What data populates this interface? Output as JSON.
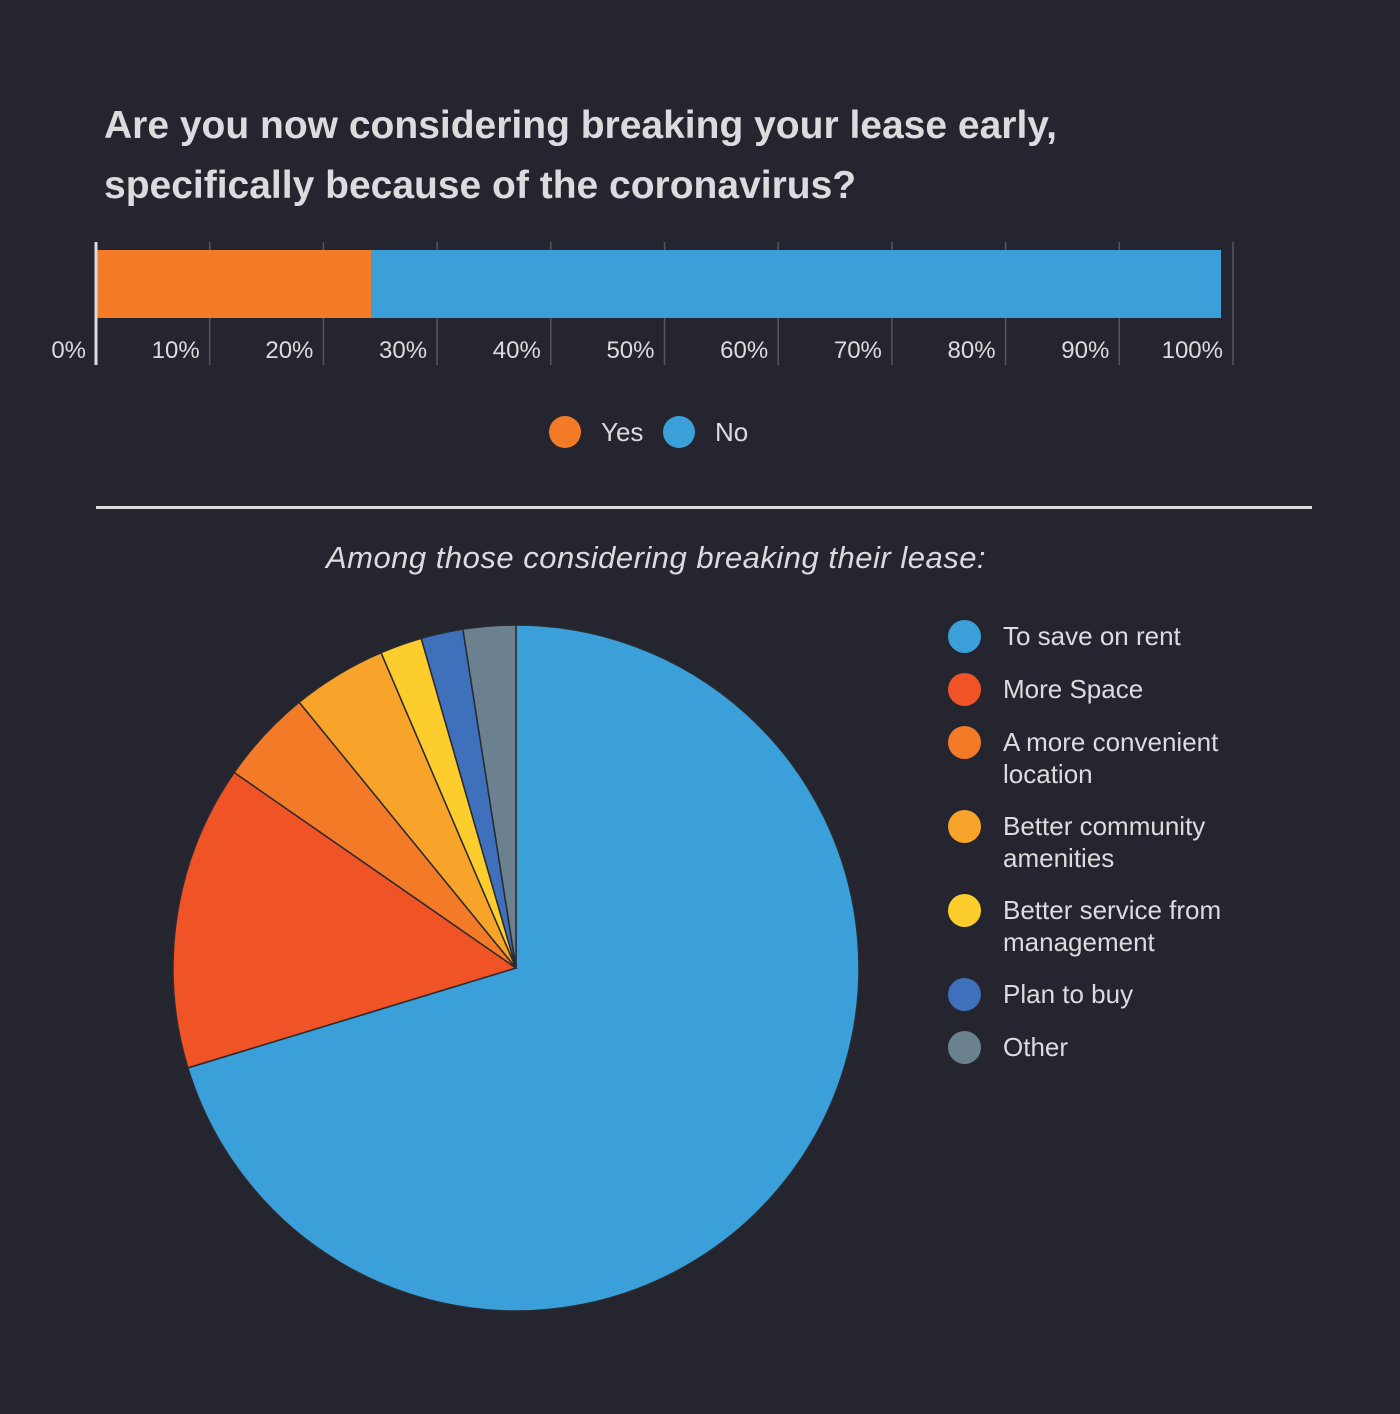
{
  "chart_data": [
    {
      "type": "bar",
      "orientation": "horizontal-stacked",
      "title": "Are you now considering breaking your lease early, specifically because of the coronavirus?",
      "categories": [
        ""
      ],
      "series": [
        {
          "name": "Yes",
          "values": [
            24.5
          ],
          "color": "#f37b27"
        },
        {
          "name": "No",
          "values": [
            75.5
          ],
          "color": "#3ba0d9"
        }
      ],
      "xlim": [
        0,
        100
      ],
      "xticks": [
        "0%",
        "10%",
        "20%",
        "30%",
        "40%",
        "50%",
        "60%",
        "70%",
        "80%",
        "90%",
        "100%"
      ],
      "grid": true,
      "legend": "bottom"
    },
    {
      "type": "pie",
      "title": "Among those considering breaking their lease:",
      "slices": [
        {
          "label": "To save on rent",
          "value": 71,
          "color": "#3ba0d9"
        },
        {
          "label": "More Space",
          "value": 14.5,
          "color": "#ef5326"
        },
        {
          "label": "A more convenient location",
          "value": 4.5,
          "color": "#f37b27"
        },
        {
          "label": "Better community amenities",
          "value": 4.5,
          "color": "#f8a42a"
        },
        {
          "label": "Better service from management",
          "value": 2,
          "color": "#fdcd2d"
        },
        {
          "label": "Plan to buy",
          "value": 2,
          "color": "#3f70bc"
        },
        {
          "label": "Other",
          "value": 2.5,
          "color": "#6c8190"
        }
      ],
      "legend": "right"
    }
  ]
}
